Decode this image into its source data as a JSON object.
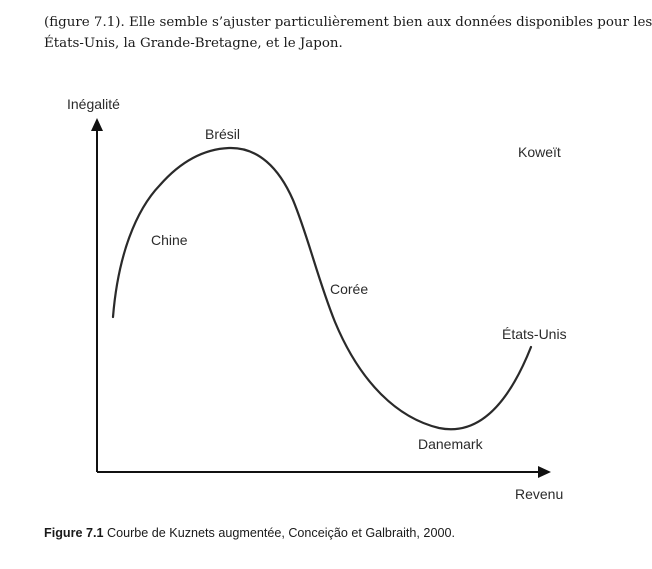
{
  "paragraph": {
    "line1": "(figure 7.1). Elle semble s’ajuster particulièrement bien aux données disponibles pour les",
    "line2": "États-Unis, la Grande-Bretagne, et le Japon."
  },
  "figure": {
    "y_axis_label": "Inégalité",
    "x_axis_label": "Revenu",
    "points": {
      "bresil": "Brésil",
      "koweit": "Koweït",
      "chine": "Chine",
      "coree": "Corée",
      "etats_unis": "États-Unis",
      "danemark": "Danemark"
    }
  },
  "caption": {
    "number": "Figure 7.1",
    "text": " Courbe de Kuznets augmentée, Conceição et Galbraith, 2000."
  }
}
